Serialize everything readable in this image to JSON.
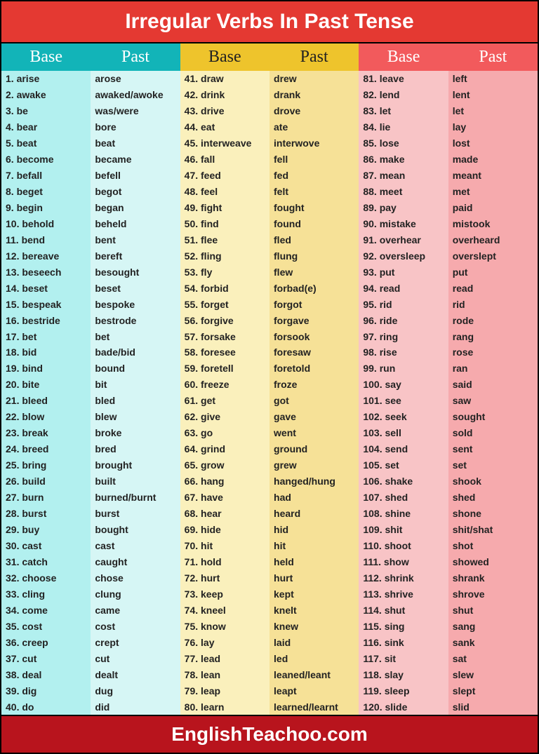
{
  "title": "Irregular Verbs In Past Tense",
  "footer": "EnglishTeachoo.com",
  "headers": {
    "base": "Base",
    "past": "Past"
  },
  "colors": {
    "header_bg": "#e43932",
    "footer_bg": "#b8141d",
    "g1_head": "#12b4b8",
    "g1_base_bg": "#b2f0ef",
    "g1_past_bg": "#d6f6f5",
    "g2_head": "#eec42c",
    "g2_base_bg": "#faf0bc",
    "g2_past_bg": "#f6e197",
    "g3_head": "#f25a5c",
    "g3_base_bg": "#f8c4c6",
    "g3_past_bg": "#f6aaad",
    "text": "#222222"
  },
  "typography": {
    "title_fontsize": 30,
    "footer_fontsize": 28,
    "head_fontsize": 24,
    "cell_fontsize": 14
  },
  "groups": [
    {
      "rows": [
        {
          "n": "1.",
          "b": "arise",
          "p": "arose"
        },
        {
          "n": "2.",
          "b": "awake",
          "p": "awaked/awoke"
        },
        {
          "n": "3.",
          "b": "be",
          "p": "was/were"
        },
        {
          "n": "4.",
          "b": "bear",
          "p": "bore"
        },
        {
          "n": "5.",
          "b": "beat",
          "p": "beat"
        },
        {
          "n": "6.",
          "b": "become",
          "p": "became"
        },
        {
          "n": "7.",
          "b": "befall",
          "p": "befell"
        },
        {
          "n": "8.",
          "b": "beget",
          "p": "begot"
        },
        {
          "n": "9.",
          "b": "begin",
          "p": "began"
        },
        {
          "n": "10.",
          "b": "behold",
          "p": "beheld"
        },
        {
          "n": "11.",
          "b": "bend",
          "p": "bent"
        },
        {
          "n": "12.",
          "b": "bereave",
          "p": "bereft"
        },
        {
          "n": "13.",
          "b": "beseech",
          "p": "besought"
        },
        {
          "n": "14.",
          "b": "beset",
          "p": "beset"
        },
        {
          "n": "15.",
          "b": "bespeak",
          "p": "bespoke"
        },
        {
          "n": "16.",
          "b": "bestride",
          "p": "bestrode"
        },
        {
          "n": "17.",
          "b": "bet",
          "p": "bet"
        },
        {
          "n": "18.",
          "b": "bid",
          "p": "bade/bid"
        },
        {
          "n": "19.",
          "b": "bind",
          "p": "bound"
        },
        {
          "n": "20.",
          "b": "bite",
          "p": "bit"
        },
        {
          "n": "21.",
          "b": "bleed",
          "p": "bled"
        },
        {
          "n": "22.",
          "b": "blow",
          "p": "blew"
        },
        {
          "n": "23.",
          "b": "break",
          "p": "broke"
        },
        {
          "n": "24.",
          "b": "breed",
          "p": "bred"
        },
        {
          "n": "25.",
          "b": "bring",
          "p": "brought"
        },
        {
          "n": "26.",
          "b": "build",
          "p": "built"
        },
        {
          "n": "27.",
          "b": "burn",
          "p": "burned/burnt"
        },
        {
          "n": "28.",
          "b": "burst",
          "p": "burst"
        },
        {
          "n": "29.",
          "b": "buy",
          "p": "bought"
        },
        {
          "n": "30.",
          "b": "cast",
          "p": "cast"
        },
        {
          "n": "31.",
          "b": "catch",
          "p": "caught"
        },
        {
          "n": "32.",
          "b": "choose",
          "p": "chose"
        },
        {
          "n": "33.",
          "b": "cling",
          "p": "clung"
        },
        {
          "n": "34.",
          "b": "come",
          "p": "came"
        },
        {
          "n": "35.",
          "b": "cost",
          "p": "cost"
        },
        {
          "n": "36.",
          "b": "creep",
          "p": "crept"
        },
        {
          "n": "37.",
          "b": "cut",
          "p": "cut"
        },
        {
          "n": "38.",
          "b": "deal",
          "p": "dealt"
        },
        {
          "n": "39.",
          "b": "dig",
          "p": "dug"
        },
        {
          "n": "40.",
          "b": "do",
          "p": "did"
        }
      ]
    },
    {
      "rows": [
        {
          "n": "41.",
          "b": "draw",
          "p": "drew"
        },
        {
          "n": "42.",
          "b": "drink",
          "p": "drank"
        },
        {
          "n": "43.",
          "b": "drive",
          "p": "drove"
        },
        {
          "n": "44.",
          "b": "eat",
          "p": "ate"
        },
        {
          "n": "45.",
          "b": "interweave",
          "p": "interwove"
        },
        {
          "n": "46.",
          "b": "fall",
          "p": "fell"
        },
        {
          "n": "47.",
          "b": "feed",
          "p": "fed"
        },
        {
          "n": "48.",
          "b": "feel",
          "p": "felt"
        },
        {
          "n": "49.",
          "b": "fight",
          "p": "fought"
        },
        {
          "n": "50.",
          "b": "find",
          "p": "found"
        },
        {
          "n": "51.",
          "b": "flee",
          "p": "fled"
        },
        {
          "n": "52.",
          "b": "fling",
          "p": "flung"
        },
        {
          "n": "53.",
          "b": "fly",
          "p": "flew"
        },
        {
          "n": "54.",
          "b": "forbid",
          "p": "forbad(e)"
        },
        {
          "n": "55.",
          "b": "forget",
          "p": "forgot"
        },
        {
          "n": "56.",
          "b": "forgive",
          "p": "forgave"
        },
        {
          "n": "57.",
          "b": "forsake",
          "p": "forsook"
        },
        {
          "n": "58.",
          "b": "foresee",
          "p": "foresaw"
        },
        {
          "n": "59.",
          "b": "foretell",
          "p": "foretold"
        },
        {
          "n": "60.",
          "b": "freeze",
          "p": "froze"
        },
        {
          "n": "61.",
          "b": "get",
          "p": "got"
        },
        {
          "n": "62.",
          "b": "give",
          "p": "gave"
        },
        {
          "n": "63.",
          "b": "go",
          "p": "went"
        },
        {
          "n": "64.",
          "b": "grind",
          "p": "ground"
        },
        {
          "n": "65.",
          "b": "grow",
          "p": "grew"
        },
        {
          "n": "66.",
          "b": "hang",
          "p": "hanged/hung"
        },
        {
          "n": "67.",
          "b": "have",
          "p": "had"
        },
        {
          "n": "68.",
          "b": "hear",
          "p": "heard"
        },
        {
          "n": "69.",
          "b": "hide",
          "p": "hid"
        },
        {
          "n": "70.",
          "b": "hit",
          "p": "hit"
        },
        {
          "n": "71.",
          "b": "hold",
          "p": "held"
        },
        {
          "n": "72.",
          "b": "hurt",
          "p": "hurt"
        },
        {
          "n": "73.",
          "b": "keep",
          "p": "kept"
        },
        {
          "n": "74.",
          "b": "kneel",
          "p": "knelt"
        },
        {
          "n": "75.",
          "b": "know",
          "p": "knew"
        },
        {
          "n": "76.",
          "b": "lay",
          "p": "laid"
        },
        {
          "n": "77.",
          "b": "lead",
          "p": "led"
        },
        {
          "n": "78.",
          "b": "lean",
          "p": "leaned/leant"
        },
        {
          "n": "79.",
          "b": "leap",
          "p": "leapt"
        },
        {
          "n": "80.",
          "b": "learn",
          "p": "learned/learnt"
        }
      ]
    },
    {
      "rows": [
        {
          "n": "81.",
          "b": "leave",
          "p": "left"
        },
        {
          "n": "82.",
          "b": "lend",
          "p": "lent"
        },
        {
          "n": "83.",
          "b": "let",
          "p": "let"
        },
        {
          "n": "84.",
          "b": "lie",
          "p": "lay"
        },
        {
          "n": "85.",
          "b": "lose",
          "p": "lost"
        },
        {
          "n": "86.",
          "b": "make",
          "p": "made"
        },
        {
          "n": "87.",
          "b": "mean",
          "p": "meant"
        },
        {
          "n": "88.",
          "b": "meet",
          "p": "met"
        },
        {
          "n": "89.",
          "b": "pay",
          "p": "paid"
        },
        {
          "n": "90.",
          "b": "mistake",
          "p": "mistook"
        },
        {
          "n": "91.",
          "b": "overhear",
          "p": "overheard"
        },
        {
          "n": "92.",
          "b": "oversleep",
          "p": "overslept"
        },
        {
          "n": "93.",
          "b": "put",
          "p": "put"
        },
        {
          "n": "94.",
          "b": "read",
          "p": "read"
        },
        {
          "n": "95.",
          "b": "rid",
          "p": "rid"
        },
        {
          "n": "96.",
          "b": "ride",
          "p": "rode"
        },
        {
          "n": "97.",
          "b": "ring",
          "p": "rang"
        },
        {
          "n": "98.",
          "b": "rise",
          "p": "rose"
        },
        {
          "n": "99.",
          "b": "run",
          "p": "ran"
        },
        {
          "n": "100.",
          "b": "say",
          "p": "said"
        },
        {
          "n": "101.",
          "b": "see",
          "p": "saw"
        },
        {
          "n": "102.",
          "b": "seek",
          "p": "sought"
        },
        {
          "n": "103.",
          "b": "sell",
          "p": "sold"
        },
        {
          "n": "104.",
          "b": "send",
          "p": "sent"
        },
        {
          "n": "105.",
          "b": "set",
          "p": "set"
        },
        {
          "n": "106.",
          "b": "shake",
          "p": "shook"
        },
        {
          "n": "107.",
          "b": "shed",
          "p": "shed"
        },
        {
          "n": "108.",
          "b": "shine",
          "p": "shone"
        },
        {
          "n": "109.",
          "b": "shit",
          "p": "shit/shat"
        },
        {
          "n": "110.",
          "b": "shoot",
          "p": "shot"
        },
        {
          "n": "111.",
          "b": "show",
          "p": "showed"
        },
        {
          "n": "112.",
          "b": "shrink",
          "p": "shrank"
        },
        {
          "n": "113.",
          "b": "shrive",
          "p": "shrove"
        },
        {
          "n": "114.",
          "b": "shut",
          "p": "shut"
        },
        {
          "n": "115.",
          "b": "sing",
          "p": "sang"
        },
        {
          "n": "116.",
          "b": "sink",
          "p": "sank"
        },
        {
          "n": "117.",
          "b": "sit",
          "p": "sat"
        },
        {
          "n": "118.",
          "b": "slay",
          "p": "slew"
        },
        {
          "n": "119.",
          "b": "sleep",
          "p": "slept"
        },
        {
          "n": "120.",
          "b": "slide",
          "p": "slid"
        }
      ]
    }
  ]
}
